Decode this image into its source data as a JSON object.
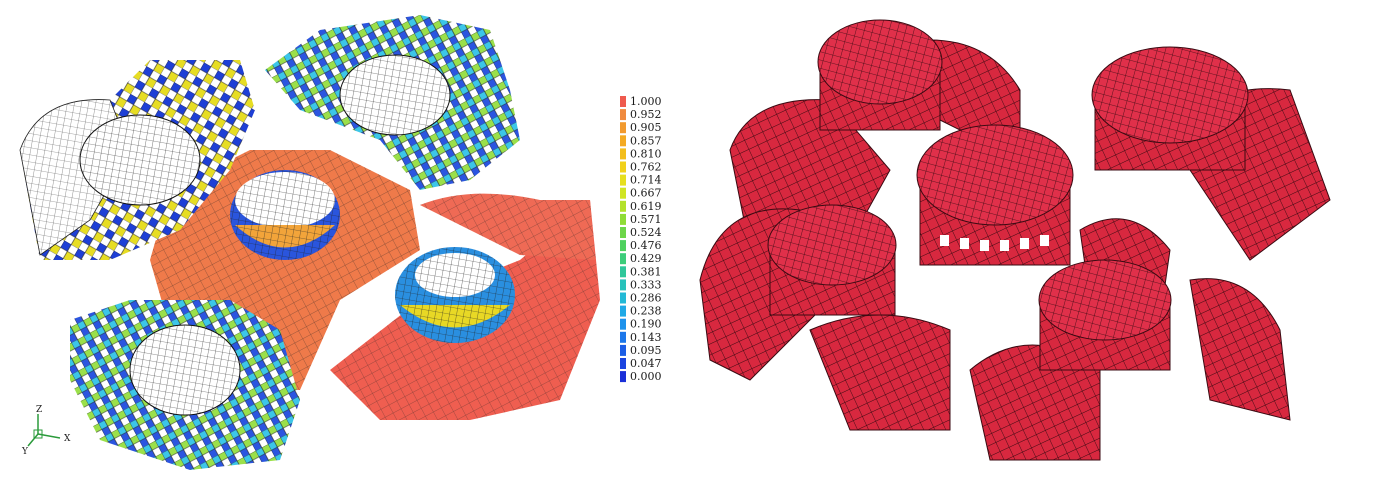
{
  "figure": {
    "legend": {
      "values": [
        "1.000",
        "0.952",
        "0.905",
        "0.857",
        "0.810",
        "0.762",
        "0.714",
        "0.667",
        "0.619",
        "0.571",
        "0.524",
        "0.476",
        "0.429",
        "0.381",
        "0.333",
        "0.286",
        "0.238",
        "0.190",
        "0.143",
        "0.095",
        "0.047",
        "0.000"
      ],
      "colors": [
        "#ef5a4e",
        "#f08a3e",
        "#f29a2e",
        "#f4aa22",
        "#f3be1c",
        "#f1d11a",
        "#e6df1e",
        "#d0e523",
        "#b3e12a",
        "#8fdc36",
        "#6dd649",
        "#4ed15e",
        "#3ccd7a",
        "#2fc79a",
        "#28c2bb",
        "#22b9d6",
        "#1fa9e6",
        "#1d92ec",
        "#1c77ea",
        "#1c5ee6",
        "#1b44e0",
        "#1a2fd8"
      ]
    },
    "axes": {
      "z": "Z",
      "y": "Y",
      "x": "X"
    }
  }
}
